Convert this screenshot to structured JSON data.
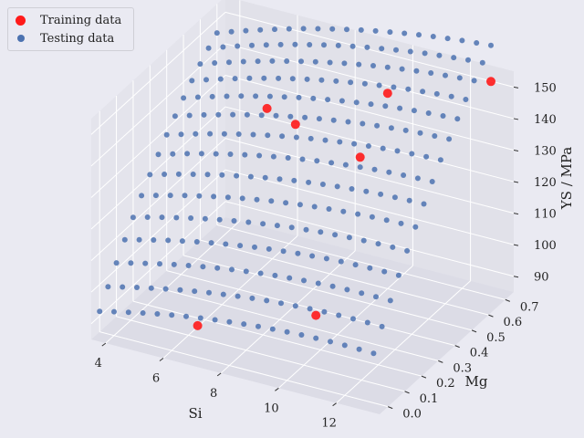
{
  "chart_data": {
    "type": "scatter",
    "projection": "3d",
    "xlabel": "Si",
    "ylabel": "Mg",
    "zlabel": "YS / MPa",
    "xlim": [
      3.5,
      13.5
    ],
    "ylim": [
      -0.05,
      0.75
    ],
    "zlim": [
      85,
      155
    ],
    "xticks": [
      "4",
      "6",
      "8",
      "10",
      "12"
    ],
    "yticks": [
      "0.0",
      "0.1",
      "0.2",
      "0.3",
      "0.4",
      "0.5",
      "0.6",
      "0.7"
    ],
    "zticks": [
      "90",
      "100",
      "110",
      "120",
      "130",
      "140",
      "150"
    ],
    "grid": true,
    "legend_position": "upper-left",
    "series": [
      {
        "name": "Training data",
        "color": "#ff1a1a",
        "points": [
          [
            6.9,
            0.0,
            95.0
          ],
          [
            11.0,
            0.0,
            108.0
          ],
          [
            5.7,
            0.62,
            131.0
          ],
          [
            7.5,
            0.48,
            137.0
          ],
          [
            10.0,
            0.6,
            147.0
          ],
          [
            10.5,
            0.35,
            140.0
          ],
          [
            13.0,
            0.7,
            153.0
          ]
        ]
      },
      {
        "name": "Testing data",
        "color": "#4c72b0",
        "generator": {
          "si_start": 3.5,
          "si_end": 13.0,
          "si_step": 0.5,
          "mg_start": 0.0,
          "mg_end": 0.7,
          "mg_step": 0.05,
          "surface": "82 + 3.17*Si - 0.133*Si^2 + 105*Mg - 46*Mg^2 + 1.4*Si*Mg"
        }
      }
    ]
  },
  "legend": {
    "training_label": "Training data",
    "testing_label": "Testing data"
  }
}
